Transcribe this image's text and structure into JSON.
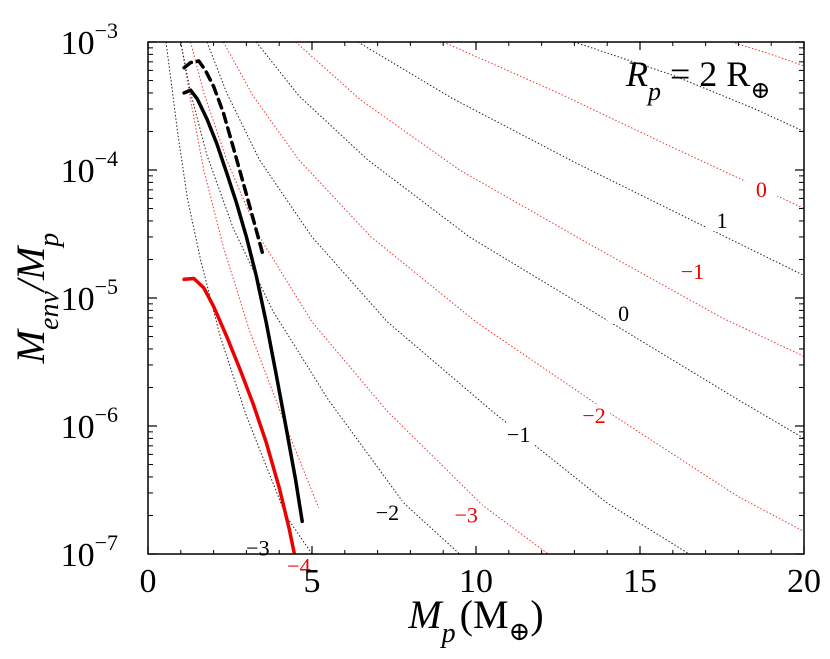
{
  "chart_data": {
    "type": "line",
    "title": "",
    "xlabel": "M_p (M_⊕)",
    "ylabel": "M_env/M_p",
    "xlabel_parts": {
      "sym": "M",
      "sub": "p",
      "unit": "(M",
      "unit_sub": "⊕",
      "close": ")"
    },
    "ylabel_parts": {
      "sym1": "M",
      "sub1": "env",
      "slash": "/M",
      "sub2": "p"
    },
    "xlim": [
      0,
      20
    ],
    "ylim": [
      1e-07,
      0.001
    ],
    "yscale": "log",
    "xticks": [
      "0",
      "5",
      "10",
      "15",
      "20"
    ],
    "yticks": [
      {
        "base": "10",
        "exp": "−3"
      },
      {
        "base": "10",
        "exp": "−4"
      },
      {
        "base": "10",
        "exp": "−5"
      },
      {
        "base": "10",
        "exp": "−6"
      },
      {
        "base": "10",
        "exp": "−7"
      }
    ],
    "annotation": {
      "sym": "R",
      "sub": "p",
      "rest": " = 2 R",
      "rest_sub": "⊕"
    },
    "colors": {
      "black": "#000000",
      "red": "#ee0000",
      "red_dotted": "#ee3333",
      "black_dotted": "#222222"
    },
    "series": [
      {
        "color": "black",
        "style": "solid",
        "x": [
          1.1,
          1.3,
          1.5,
          1.8,
          2.1,
          2.4,
          2.7,
          3.0,
          3.3,
          3.6,
          3.9,
          4.2,
          4.5,
          4.7
        ],
        "y": [
          0.0004,
          0.00042,
          0.00036,
          0.00025,
          0.00016,
          9.5e-05,
          5.5e-05,
          3e-05,
          1.5e-05,
          6.5e-06,
          2.6e-06,
          1e-06,
          3.8e-07,
          1.8e-07
        ]
      },
      {
        "color": "black",
        "style": "dashed",
        "x": [
          1.1,
          1.3,
          1.55,
          1.75,
          2.0,
          2.3,
          2.6,
          2.9,
          3.2,
          3.5
        ],
        "y": [
          0.00063,
          0.00069,
          0.00071,
          0.0006,
          0.00045,
          0.00028,
          0.00015,
          8e-05,
          4.2e-05,
          2.2e-05
        ]
      },
      {
        "color": "red",
        "style": "solid",
        "x": [
          1.1,
          1.4,
          1.7,
          2.0,
          2.4,
          2.8,
          3.2,
          3.6,
          4.0,
          4.3,
          4.5
        ],
        "y": [
          1.4e-05,
          1.42e-05,
          1.2e-05,
          8.6e-06,
          5e-06,
          2.8e-06,
          1.5e-06,
          7.5e-07,
          3.3e-07,
          1.6e-07,
          9e-08
        ]
      }
    ],
    "contours": [
      {
        "label": "−3",
        "color": "black",
        "label_x": 3.35,
        "label_y": 1.1e-07,
        "curve_x": [
          0.55,
          0.7,
          0.9,
          1.2,
          1.6,
          2.2,
          3.0,
          4.2,
          5.0
        ],
        "curve_y": [
          0.001,
          0.0005,
          0.0002,
          6e-05,
          2e-05,
          5e-06,
          1.2e-06,
          2e-07,
          1e-07
        ]
      },
      {
        "label": "−4",
        "color": "red",
        "label_x": 4.6,
        "label_y": 8e-08,
        "curve_x": [
          1.0,
          1.3,
          1.7,
          2.3,
          3.1,
          4.2,
          5.2
        ],
        "curve_y": [
          0.001,
          0.00035,
          0.0001,
          2.5e-05,
          5.5e-06,
          1e-06,
          2.3e-07
        ]
      },
      {
        "label": "−2",
        "color": "black",
        "label_x": 7.3,
        "label_y": 2.1e-07,
        "curve_x": [
          1.0,
          1.3,
          1.8,
          2.6,
          3.8,
          5.5,
          7.8,
          9.5
        ],
        "curve_y": [
          0.001,
          0.0004,
          0.00013,
          3.5e-05,
          8e-06,
          1.6e-06,
          2.5e-07,
          1e-07
        ]
      },
      {
        "label": "−3",
        "color": "red",
        "label_x": 9.7,
        "label_y": 2e-07,
        "curve_x": [
          1.3,
          1.7,
          2.4,
          3.4,
          5.0,
          7.3,
          10.2,
          12.2
        ],
        "curve_y": [
          0.001,
          0.0004,
          0.00012,
          3e-05,
          6.5e-06,
          1.3e-06,
          2.4e-07,
          1e-07
        ]
      },
      {
        "label": "−1",
        "color": "black",
        "label_x": 11.3,
        "label_y": 8.5e-07,
        "curve_x": [
          1.8,
          2.4,
          3.4,
          5.0,
          7.3,
          10.5,
          14.0,
          16.5
        ],
        "curve_y": [
          0.001,
          0.0004,
          0.00012,
          3e-05,
          6.5e-06,
          1.3e-06,
          2.5e-07,
          1e-07
        ]
      },
      {
        "label": "−2",
        "color": "red",
        "label_x": 13.6,
        "label_y": 1.2e-06,
        "curve_x": [
          2.3,
          3.2,
          4.6,
          6.8,
          10.0,
          14.0,
          18.0,
          20.0
        ],
        "curve_y": [
          0.001,
          0.00038,
          0.00012,
          3e-05,
          6.5e-06,
          1.3e-06,
          2.8e-07,
          1.5e-07
        ]
      },
      {
        "label": "0",
        "color": "black",
        "label_x": 14.5,
        "label_y": 7.5e-06,
        "curve_x": [
          3.3,
          4.6,
          6.7,
          9.8,
          14.0,
          18.0,
          20.0
        ],
        "curve_y": [
          0.001,
          0.00038,
          0.00012,
          3e-05,
          6.7e-06,
          1.6e-06,
          8e-07
        ]
      },
      {
        "label": "−1",
        "color": "red",
        "label_x": 16.6,
        "label_y": 1.6e-05,
        "curve_x": [
          4.5,
          6.5,
          9.5,
          13.5,
          17.5,
          20.0
        ],
        "curve_y": [
          0.001,
          0.00035,
          0.0001,
          2.6e-05,
          7e-06,
          3.5e-06
        ]
      },
      {
        "label": "1",
        "color": "black",
        "label_x": 17.5,
        "label_y": 4e-05,
        "curve_x": [
          6.4,
          9.3,
          13.0,
          16.8,
          20.0
        ],
        "curve_y": [
          0.001,
          0.00036,
          0.000115,
          3.8e-05,
          1.5e-05
        ]
      },
      {
        "label": "0",
        "color": "red",
        "label_x": 18.7,
        "label_y": 7e-05,
        "curve_x": [
          9.0,
          12.5,
          16.0,
          20.0
        ],
        "curve_y": [
          0.001,
          0.0004,
          0.00015,
          5e-05
        ]
      },
      {
        "label": "",
        "color": "black",
        "label_x": 0,
        "label_y": 0,
        "curve_x": [
          13.0,
          16.0,
          18.5,
          20.0
        ],
        "curve_y": [
          0.001,
          0.00055,
          0.0003,
          0.0002
        ]
      },
      {
        "label": "",
        "color": "red",
        "label_x": 0,
        "label_y": 0,
        "curve_x": [
          17.8,
          19.0,
          20.0
        ],
        "curve_y": [
          0.001,
          0.0008,
          0.00065
        ]
      }
    ]
  }
}
